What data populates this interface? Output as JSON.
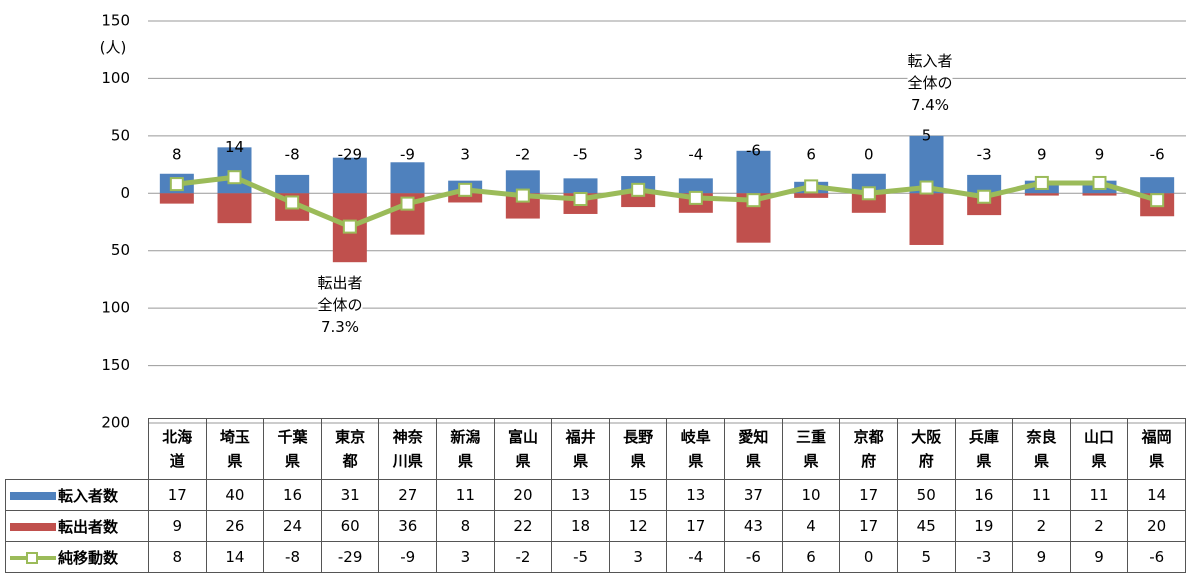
{
  "chart_data": {
    "type": "bar-line",
    "y_label": "(人)",
    "categories": [
      "北海\n道",
      "埼玉\n県",
      "千葉\n県",
      "東京\n都",
      "神奈\n川県",
      "新潟\n県",
      "富山\n県",
      "福井\n県",
      "長野\n県",
      "岐阜\n県",
      "愛知\n県",
      "三重\n県",
      "京都\n府",
      "大阪\n府",
      "兵庫\n県",
      "奈良\n県",
      "山口\n県",
      "福岡\n県"
    ],
    "series": [
      {
        "name": "転入者数",
        "color": "#4f81bd",
        "direction": "up",
        "values": [
          17,
          40,
          16,
          31,
          27,
          11,
          20,
          13,
          15,
          13,
          37,
          10,
          17,
          50,
          16,
          11,
          11,
          14
        ]
      },
      {
        "name": "転出者数",
        "color": "#c0504d",
        "direction": "down",
        "values": [
          9,
          26,
          24,
          60,
          36,
          8,
          22,
          18,
          12,
          17,
          43,
          4,
          17,
          45,
          19,
          2,
          2,
          20
        ]
      },
      {
        "name": "純移動数",
        "color": "#9bbb59",
        "values": [
          8,
          14,
          -8,
          -29,
          -9,
          3,
          -2,
          -5,
          3,
          -4,
          -6,
          6,
          0,
          5,
          -3,
          9,
          9,
          -6
        ]
      }
    ],
    "ylim": [
      -200,
      150
    ],
    "yticks": [
      150,
      100,
      50,
      0,
      {
        "value": -50,
        "label": "50"
      },
      {
        "value": -100,
        "label": "100"
      },
      {
        "value": -150,
        "label": "150"
      },
      {
        "value": -200,
        "label": "200"
      }
    ],
    "grid": true,
    "annotations": [
      "転入者\n全体の\n7.4%",
      "転出者\n全体の\n7.3%"
    ]
  }
}
